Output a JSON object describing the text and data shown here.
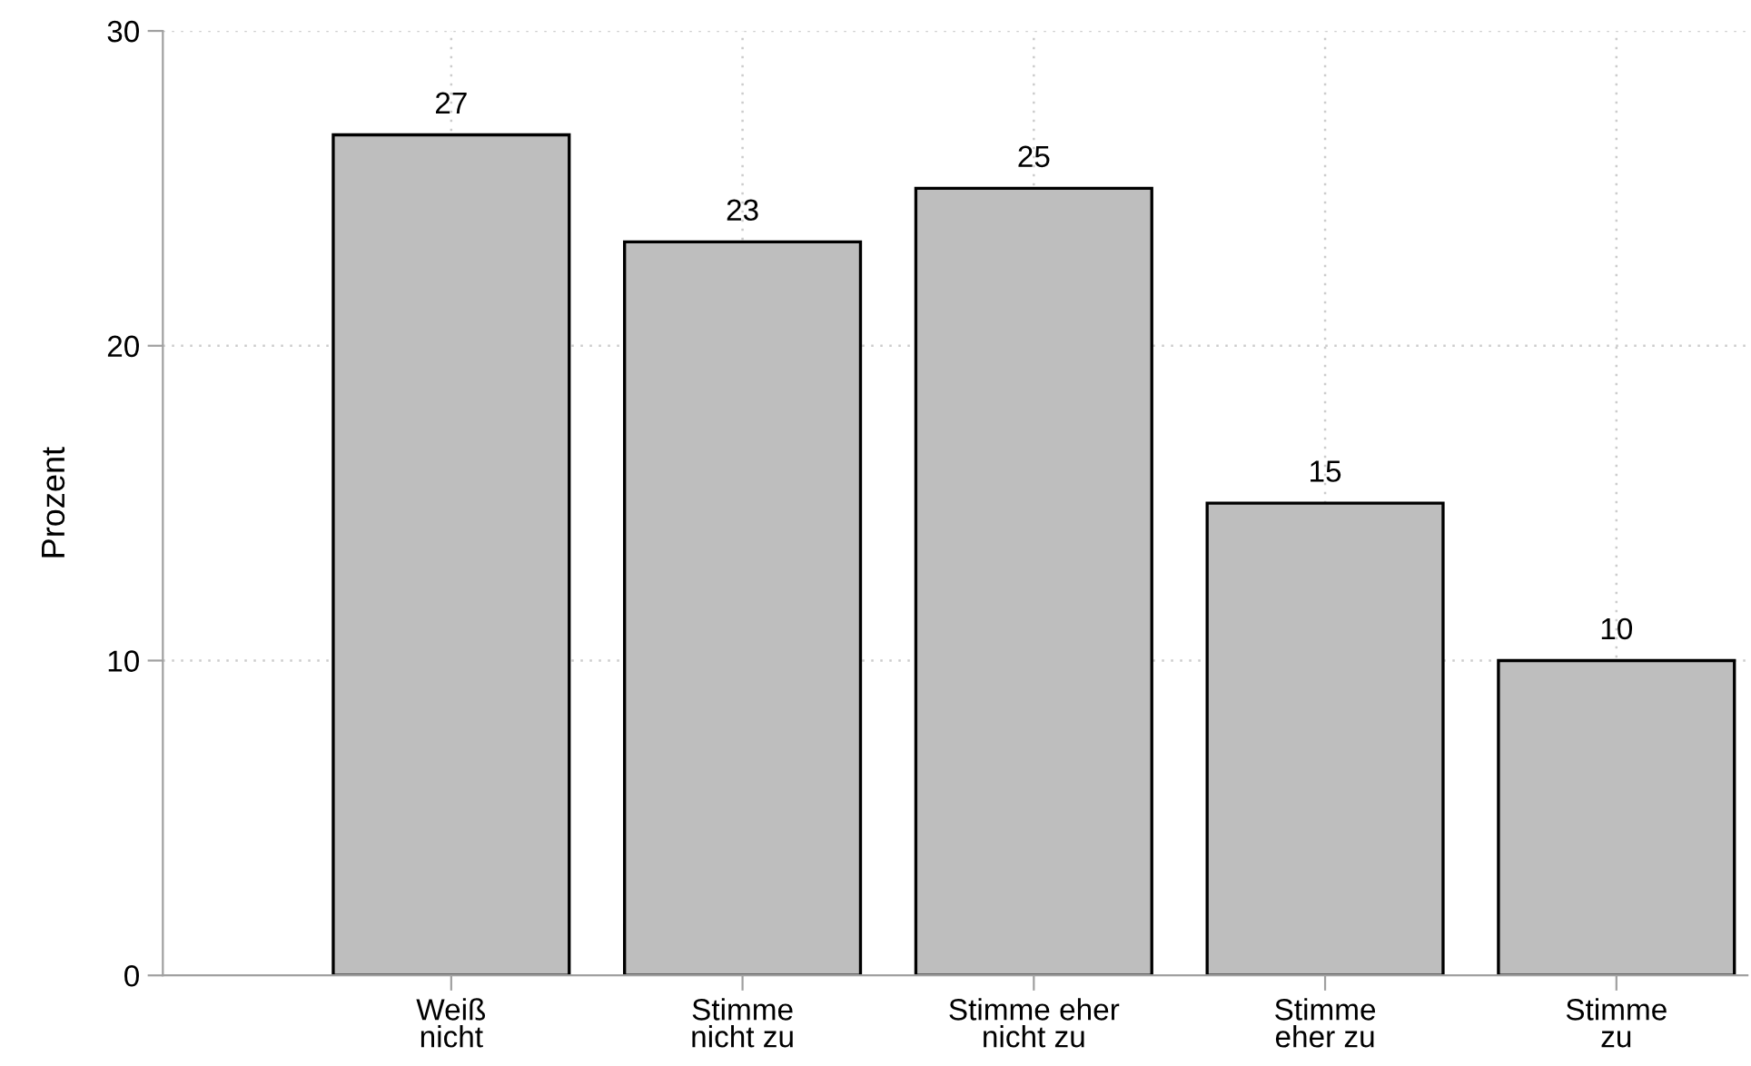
{
  "chart_data": {
    "type": "bar",
    "ylabel": "Prozent",
    "categories": [
      "Weiß\nnicht",
      "Stimme\nnicht zu",
      "Stimme eher\nnicht zu",
      "Stimme\neher zu",
      "Stimme\nzu"
    ],
    "values": [
      26.7,
      23.3,
      25.0,
      15.0,
      10.0
    ],
    "value_labels": [
      "27",
      "23",
      "25",
      "15",
      "10"
    ],
    "color": "#bebebe",
    "ylim": [
      0,
      30
    ],
    "yticks": [
      0,
      10,
      20,
      30
    ],
    "grid": true
  }
}
